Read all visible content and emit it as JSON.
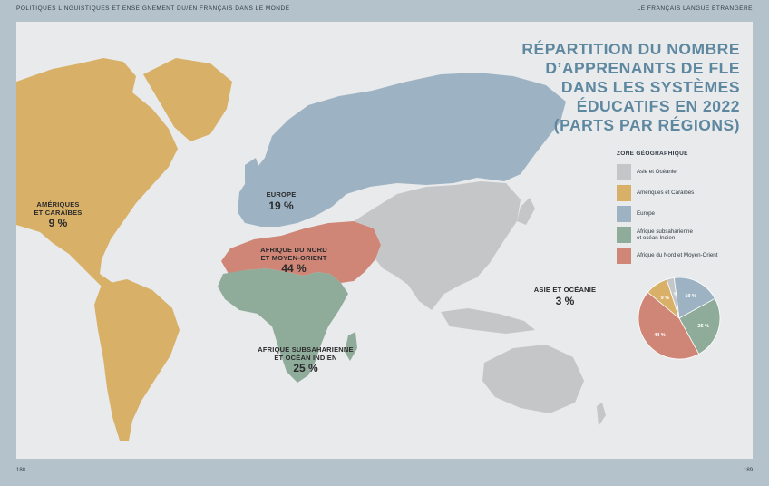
{
  "header": {
    "left": "POLITIQUES LINGUISTIQUES ET ENSEIGNEMENT DU/EN FRANÇAIS DANS LE MONDE",
    "right": "LE FRANÇAIS LANGUE ÉTRANGÈRE"
  },
  "pages": {
    "left": "188",
    "right": "189"
  },
  "title": {
    "line1": "RÉPARTITION DU NOMBRE",
    "line2": "D’APPRENANTS DE FLE",
    "line3": "DANS LES SYSTÈMES",
    "line4": "ÉDUCATIFS EN 2022",
    "line5": "(PARTS PAR RÉGIONS)"
  },
  "legend": {
    "title": "ZONE GÉOGRAPHIQUE",
    "items": [
      {
        "label": "Asie et Océanie",
        "color": "#c4c6c7"
      },
      {
        "label": "Amériques et Caraïbes",
        "color": "#d8b068"
      },
      {
        "label": "Europe",
        "color": "#9db3c4"
      },
      {
        "label": "Afrique subsaharienne\net océan Indien",
        "color": "#8fab9a"
      },
      {
        "label": "Afrique du Nord et Moyen-Orient",
        "color": "#cf8676"
      }
    ]
  },
  "regions": {
    "americas": {
      "name1": "AMÉRIQUES",
      "name2": "ET CARAÏBES",
      "pct": "9 %"
    },
    "europe": {
      "name1": "EUROPE",
      "pct": "19 %"
    },
    "mena": {
      "name1": "AFRIQUE DU NORD",
      "name2": "ET MOYEN-ORIENT",
      "pct": "44 %"
    },
    "subsahara": {
      "name1": "AFRIQUE SUBSAHARIENNE",
      "name2": "ET OCÉAN INDIEN",
      "pct": "25 %"
    },
    "asia": {
      "name1": "ASIE ET OCÉANIE",
      "pct": "3 %"
    }
  },
  "chart_data": {
    "type": "pie",
    "categories": [
      "Asie et Océanie",
      "Europe",
      "Afrique subsaharienne et océan Indien",
      "Afrique du Nord et Moyen-Orient",
      "Amériques et Caraïbes"
    ],
    "values": [
      3,
      19,
      25,
      44,
      9
    ],
    "labels": [
      "3 %",
      "19 %",
      "25 %",
      "44 %",
      "9 %"
    ],
    "colors": [
      "#c4c6c7",
      "#9db3c4",
      "#8fab9a",
      "#cf8676",
      "#d8b068"
    ],
    "start_angle_deg": -18
  }
}
